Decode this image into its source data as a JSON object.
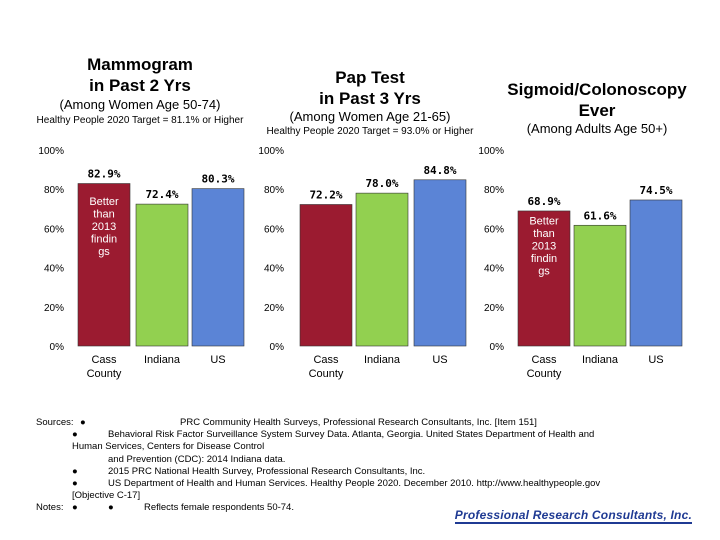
{
  "colors": {
    "cass": "#9b1b30",
    "indiana": "#92d050",
    "us": "#5b84d6",
    "note_text": "#ffffff",
    "gridline": "#bfbfbf"
  },
  "panels": [
    {
      "title_line1": "Mammogram",
      "title_line2": "in Past 2 Yrs",
      "subtitle": "(Among Women Age 50-74)",
      "target": "Healthy People 2020 Target = 81.1% or Higher"
    },
    {
      "title_line1": "Pap Test",
      "title_line2": "in Past 3 Yrs",
      "subtitle": "(Among Women Age 21-65)",
      "target": "Healthy People 2020 Target = 93.0% or Higher"
    },
    {
      "title_line1": "Sigmoid/Colonoscopy",
      "title_line2": "Ever",
      "subtitle": "(Among Adults Age 50+)",
      "target": ""
    }
  ],
  "chart_data": [
    {
      "type": "bar",
      "title": "Mammogram in Past 2 Yrs",
      "categories": [
        "Cass County",
        "Indiana",
        "US"
      ],
      "values": [
        82.9,
        72.4,
        80.3
      ],
      "value_labels": [
        "82.9%",
        "72.4%",
        "80.3%"
      ],
      "yticks": [
        "0%",
        "20%",
        "40%",
        "60%",
        "80%",
        "100%"
      ],
      "ylim": [
        0,
        100
      ],
      "bar_note": [
        "Better",
        "than",
        "2013",
        "findin",
        "gs"
      ]
    },
    {
      "type": "bar",
      "title": "Pap Test in Past 3 Yrs",
      "categories": [
        "Cass County",
        "Indiana",
        "US"
      ],
      "values": [
        72.2,
        78.0,
        84.8
      ],
      "value_labels": [
        "72.2%",
        "78.0%",
        "84.8%"
      ],
      "yticks": [
        "0%",
        "20%",
        "40%",
        "60%",
        "80%",
        "100%"
      ],
      "ylim": [
        0,
        100
      ]
    },
    {
      "type": "bar",
      "title": "Sigmoid/Colonoscopy Ever",
      "categories": [
        "Cass County",
        "Indiana",
        "US"
      ],
      "values": [
        68.9,
        61.6,
        74.5
      ],
      "value_labels": [
        "68.9%",
        "61.6%",
        "74.5%"
      ],
      "yticks": [
        "0%",
        "20%",
        "40%",
        "60%",
        "80%",
        "100%"
      ],
      "ylim": [
        0,
        100
      ],
      "bar_note": [
        "Better",
        "than",
        "2013",
        "findin",
        "gs"
      ]
    }
  ],
  "footer": {
    "sources_label": "Sources:",
    "notes_label": "Notes:",
    "bullet": "●",
    "source_lines": [
      "PRC Community Health Surveys, Professional Research Consultants, Inc. [Item 151]",
      "Behavioral Risk Factor Surveillance System Survey Data. Atlanta, Georgia. United States Department of Health and",
      "Human Services, Centers for Disease Control",
      "and Prevention (CDC): 2014 Indiana data.",
      "2015 PRC National Health Survey, Professional Research Consultants, Inc.",
      "US Department of Health and Human Services. Healthy People 2020. December 2010. http://www.healthypeople.gov",
      "[Objective C-17]"
    ],
    "note_line": "Reflects female respondents 50-74.",
    "logo": "Professional Research Consultants, Inc."
  }
}
